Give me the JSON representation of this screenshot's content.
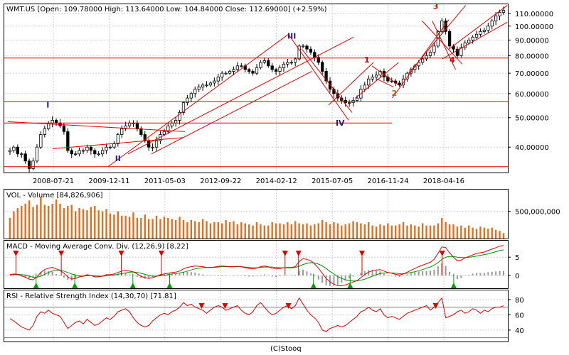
{
  "footer": {
    "copyright": "(C)Stooq"
  },
  "colors": {
    "price": "#000000",
    "volume": "#e07020",
    "macd": "#e00000",
    "signal": "#009000",
    "hist": "#999999",
    "rsi": "#e00000",
    "annotation": "#e00000",
    "roman": "#202080",
    "marker_up": "#00a000",
    "marker_down": "#e00000"
  },
  "chart_data": [
    {
      "type": "candlestick",
      "title": "WMT.US [Open: 109.78000  High: 113.64000  Low: 104.84000  Close: 112.69000] (+2.59%)",
      "scale": "log",
      "ylim": [
        33,
        118
      ],
      "yticks": [
        40,
        50,
        60,
        70,
        80,
        90,
        100,
        110
      ],
      "ytick_labels": [
        "40.00000",
        "50.00000",
        "60.00000",
        "70.00000",
        "80.00000",
        "90.00000",
        "100.00000",
        "110.00000"
      ],
      "x_range": [
        "2007-05-01",
        "2019-11-20"
      ],
      "xticks": [
        "2008-07-21",
        "2009-12-11",
        "2011-05-03",
        "2012-09-22",
        "2014-02-12",
        "2015-07-05",
        "2016-11-24",
        "2018-04-16"
      ],
      "grid": true,
      "closes": [
        39,
        40,
        38,
        38,
        36,
        34,
        36,
        40,
        44,
        46,
        48,
        49,
        48,
        47,
        45,
        39,
        38,
        38,
        39,
        39,
        40,
        39,
        38,
        38,
        39,
        40,
        40,
        41,
        44,
        46,
        47,
        48,
        48,
        46,
        44,
        42,
        40,
        40,
        42,
        44,
        45,
        47,
        48,
        49,
        52,
        56,
        58,
        60,
        62,
        63,
        64,
        64,
        65,
        66,
        68,
        70,
        70,
        71,
        72,
        74,
        74,
        72,
        71,
        70,
        73,
        76,
        77,
        74,
        72,
        71,
        73,
        75,
        76,
        76,
        78,
        86,
        86,
        84,
        82,
        79,
        76,
        71,
        66,
        62,
        60,
        58,
        57,
        56,
        56,
        57,
        58,
        62,
        64,
        67,
        68,
        69,
        71,
        68,
        66,
        66,
        65,
        64,
        67,
        70,
        72,
        74,
        76,
        78,
        80,
        82,
        86,
        96,
        104,
        96,
        86,
        84,
        80,
        85,
        88,
        90,
        92,
        94,
        96,
        97,
        100,
        104,
        108,
        111,
        112.69
      ],
      "horizontal_lines": [
        34.5,
        48,
        56.5,
        78.5
      ],
      "annotations": [
        {
          "text": "I",
          "x": "2008-06-01",
          "y": 54
        },
        {
          "text": "II",
          "x": "2010-03-01",
          "y": 36
        },
        {
          "text": "III",
          "x": "2014-07-01",
          "y": 91
        },
        {
          "text": "IV",
          "x": "2015-09-15",
          "y": 47
        },
        {
          "text": "1",
          "x": "2016-05-15",
          "y": 76
        },
        {
          "text": "2",
          "x": "2017-01-20",
          "y": 59
        },
        {
          "text": "3",
          "x": "2018-02-01",
          "y": 114
        },
        {
          "text": "4",
          "x": "2018-07-01",
          "y": 76
        }
      ],
      "trendlines": [
        [
          [
            "2007-06-01",
            48.5
          ],
          [
            "2011-11-01",
            45
          ]
        ],
        [
          [
            "2008-07-15",
            39.5
          ],
          [
            "2011-10-15",
            43
          ]
        ],
        [
          [
            "2009-12-01",
            34.5
          ],
          [
            "2014-06-01",
            94
          ]
        ],
        [
          [
            "2010-06-01",
            38
          ],
          [
            "2016-01-15",
            92
          ]
        ],
        [
          [
            "2011-01-01",
            38
          ],
          [
            "2015-01-01",
            71
          ]
        ],
        [
          [
            "2014-06-01",
            94
          ],
          [
            "2015-12-01",
            49
          ]
        ],
        [
          [
            "2014-10-01",
            84
          ],
          [
            "2016-01-01",
            52
          ]
        ],
        [
          [
            "2015-06-01",
            55
          ],
          [
            "2016-07-15",
            76
          ]
        ],
        [
          [
            "2016-02-01",
            58
          ],
          [
            "2017-03-01",
            76
          ]
        ],
        [
          [
            "2016-07-01",
            74
          ],
          [
            "2017-03-01",
            64
          ]
        ],
        [
          [
            "2016-08-15",
            67
          ],
          [
            "2017-01-15",
            63
          ]
        ],
        [
          [
            "2017-01-01",
            58
          ],
          [
            "2018-06-01",
            105
          ]
        ],
        [
          [
            "2017-06-01",
            70
          ],
          [
            "2018-11-01",
            117
          ]
        ],
        [
          [
            "2017-10-01",
            104
          ],
          [
            "2018-10-01",
            75
          ]
        ],
        [
          [
            "2018-01-01",
            104
          ],
          [
            "2018-08-01",
            72
          ]
        ],
        [
          [
            "2018-04-01",
            78
          ],
          [
            "2019-11-15",
            103
          ]
        ],
        [
          [
            "2018-06-01",
            84
          ],
          [
            "2019-11-15",
            117
          ]
        ]
      ]
    },
    {
      "type": "bar",
      "title": "VOL - Volume [84,826,906]",
      "ylim": [
        0,
        900000000
      ],
      "yticks": [
        500000000
      ],
      "ytick_labels": [
        "500,000,000"
      ],
      "x_range": [
        "2007-05-01",
        "2019-11-20"
      ],
      "values": [
        380,
        500,
        560,
        600,
        640,
        700,
        580,
        620,
        760,
        620,
        600,
        640,
        720,
        640,
        560,
        600,
        620,
        500,
        560,
        540,
        520,
        580,
        600,
        520,
        500,
        540,
        460,
        440,
        500,
        420,
        420,
        400,
        480,
        380,
        380,
        440,
        360,
        360,
        420,
        360,
        400,
        380,
        360,
        340,
        400,
        340,
        300,
        340,
        320,
        300,
        360,
        320,
        280,
        300,
        300,
        280,
        340,
        300,
        320,
        260,
        300,
        280,
        260,
        240,
        300,
        260,
        240,
        240,
        300,
        280,
        280,
        260,
        300,
        260,
        320,
        280,
        260,
        280,
        240,
        260,
        280,
        340,
        300,
        260,
        300,
        280,
        240,
        260,
        280,
        320,
        300,
        280,
        260,
        300,
        240,
        220,
        260,
        240,
        280,
        240,
        240,
        260,
        300,
        240,
        260,
        240,
        220,
        280,
        240,
        240,
        240,
        280,
        380,
        300,
        260,
        260,
        220,
        240,
        200,
        240,
        200,
        180,
        220,
        200,
        180,
        200,
        160,
        140,
        100
      ]
    },
    {
      "type": "line",
      "title": "MACD - Moving Average Conv. Div. (12,26,9) [8.22]",
      "ylim": [
        -3.5,
        9.5
      ],
      "yticks": [
        0,
        5
      ],
      "ytick_labels": [
        "0",
        "5"
      ],
      "x_range": [
        "2007-05-01",
        "2019-11-20"
      ],
      "series_macd": [
        0.2,
        0.4,
        0.3,
        -0.1,
        -0.5,
        -1.0,
        -1.2,
        -0.4,
        0.8,
        1.6,
        2.0,
        2.2,
        1.8,
        1.4,
        0.6,
        -0.4,
        -1.0,
        -0.8,
        -0.4,
        -0.2,
        0.2,
        0.0,
        -0.4,
        -0.4,
        -0.2,
        0.2,
        0.2,
        0.4,
        0.8,
        1.2,
        1.4,
        1.2,
        1.0,
        0.4,
        -0.2,
        -0.6,
        -0.8,
        -0.6,
        -0.2,
        0.2,
        0.4,
        0.6,
        0.8,
        0.9,
        1.2,
        1.8,
        2.2,
        2.4,
        2.6,
        2.5,
        2.4,
        2.2,
        2.2,
        2.3,
        2.5,
        2.6,
        2.5,
        2.4,
        2.4,
        2.5,
        2.4,
        2.1,
        1.9,
        1.8,
        2.0,
        2.4,
        2.6,
        2.4,
        2.0,
        1.8,
        1.9,
        2.1,
        2.2,
        2.2,
        2.4,
        3.8,
        4.6,
        4.4,
        4.0,
        3.2,
        2.0,
        0.6,
        -0.8,
        -1.8,
        -2.4,
        -2.8,
        -2.8,
        -2.6,
        -2.2,
        -1.8,
        -1.4,
        -0.6,
        0.2,
        0.9,
        1.3,
        1.5,
        1.6,
        1.2,
        0.8,
        0.6,
        0.3,
        0.1,
        0.4,
        0.9,
        1.4,
        1.9,
        2.4,
        2.8,
        3.2,
        3.6,
        4.4,
        6.0,
        7.8,
        7.6,
        6.2,
        5.0,
        4.0,
        4.2,
        4.8,
        5.2,
        5.6,
        6.0,
        6.2,
        6.4,
        6.8,
        7.2,
        7.6,
        8.0,
        8.2
      ],
      "series_signal": [
        0.1,
        0.2,
        0.3,
        0.2,
        0.1,
        -0.2,
        -0.5,
        -0.5,
        -0.2,
        0.3,
        0.8,
        1.2,
        1.4,
        1.4,
        1.2,
        0.8,
        0.4,
        0.1,
        -0.1,
        -0.2,
        -0.1,
        0.0,
        -0.1,
        -0.2,
        -0.2,
        -0.1,
        0.0,
        0.1,
        0.3,
        0.5,
        0.7,
        0.9,
        0.9,
        0.8,
        0.6,
        0.3,
        0.0,
        -0.2,
        -0.2,
        -0.1,
        0.0,
        0.2,
        0.4,
        0.5,
        0.7,
        0.9,
        1.2,
        1.5,
        1.8,
        2.0,
        2.1,
        2.2,
        2.2,
        2.2,
        2.3,
        2.4,
        2.4,
        2.4,
        2.4,
        2.4,
        2.4,
        2.3,
        2.2,
        2.1,
        2.1,
        2.2,
        2.3,
        2.3,
        2.3,
        2.2,
        2.1,
        2.1,
        2.1,
        2.1,
        2.2,
        2.5,
        3.0,
        3.3,
        3.5,
        3.4,
        3.1,
        2.6,
        1.9,
        1.1,
        0.4,
        -0.3,
        -0.8,
        -1.2,
        -1.4,
        -1.5,
        -1.5,
        -1.3,
        -1.0,
        -0.6,
        -0.2,
        0.2,
        0.5,
        0.7,
        0.7,
        0.7,
        0.6,
        0.5,
        0.5,
        0.6,
        0.8,
        1.0,
        1.3,
        1.6,
        2.0,
        2.3,
        2.8,
        3.5,
        4.4,
        5.0,
        5.2,
        5.2,
        5.0,
        4.9,
        4.9,
        5.0,
        5.1,
        5.3,
        5.5,
        5.7,
        5.9,
        6.2,
        6.5,
        6.8,
        7.0
      ],
      "buy_signals": [
        "2008-02-15",
        "2009-02-01",
        "2010-07-15",
        "2011-06-15",
        "2015-01-15",
        "2015-12-15",
        "2018-07-15"
      ],
      "sell_signals": [
        "2007-08-15",
        "2008-10-01",
        "2010-04-01",
        "2011-04-01",
        "2014-05-01",
        "2014-09-01",
        "2016-04-01",
        "2018-04-01"
      ]
    },
    {
      "type": "line",
      "title": "RSI - Relative Strength Index (14,30,70) [71.81]",
      "ylim": [
        25,
        92
      ],
      "yticks": [
        40,
        60,
        80
      ],
      "ytick_labels": [
        "40",
        "60",
        "80"
      ],
      "reference_lines": [
        30,
        70
      ],
      "x_range": [
        "2007-05-01",
        "2019-11-20"
      ],
      "values": [
        55,
        52,
        48,
        44,
        42,
        40,
        46,
        58,
        64,
        62,
        66,
        62,
        60,
        58,
        50,
        42,
        46,
        50,
        52,
        48,
        54,
        50,
        46,
        48,
        52,
        56,
        54,
        58,
        64,
        66,
        68,
        64,
        56,
        50,
        46,
        44,
        46,
        52,
        56,
        60,
        62,
        60,
        64,
        66,
        70,
        76,
        72,
        74,
        70,
        68,
        66,
        62,
        66,
        70,
        72,
        70,
        66,
        68,
        70,
        72,
        66,
        62,
        60,
        64,
        72,
        76,
        70,
        64,
        60,
        62,
        66,
        70,
        72,
        68,
        72,
        82,
        74,
        66,
        60,
        56,
        50,
        40,
        38,
        42,
        44,
        46,
        44,
        46,
        50,
        54,
        58,
        64,
        66,
        70,
        66,
        64,
        68,
        60,
        56,
        58,
        56,
        54,
        58,
        62,
        64,
        66,
        68,
        70,
        72,
        66,
        70,
        76,
        82,
        56,
        58,
        60,
        64,
        66,
        62,
        64,
        68,
        66,
        62,
        66,
        64,
        68,
        70,
        70,
        71.81
      ],
      "overbought_markers": [
        "2012-04-01",
        "2012-11-01",
        "2014-06-01",
        "2018-02-01"
      ]
    }
  ]
}
